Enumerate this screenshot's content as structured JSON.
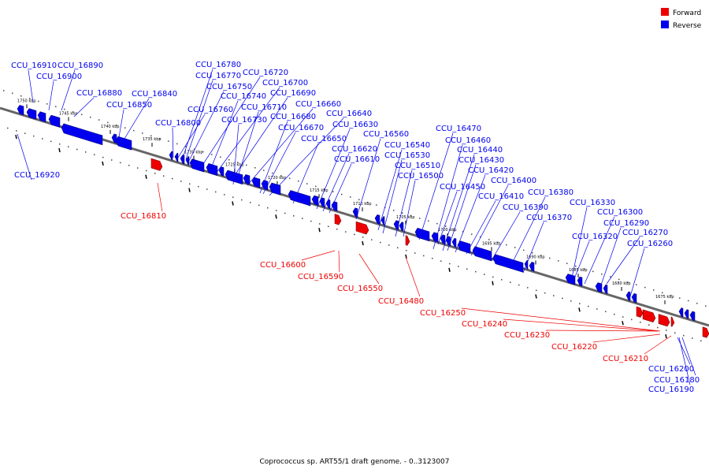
{
  "legend": [
    {
      "label": "Forward",
      "color": "#ee0000"
    },
    {
      "label": "Reverse",
      "color": "#0000ee"
    }
  ],
  "caption": "Coprococcus sp. ART55/1 draft genome. - 0..3123007",
  "colors": {
    "forward": "#ee0000",
    "reverse": "#0000ee",
    "backbone": "#666666"
  },
  "scale_unit": "kbp",
  "scale_ticks": [
    "1750 kbp",
    "1745 kbp",
    "1740 kbp",
    "1735 kbp",
    "1730 kbp",
    "1725 kbp",
    "1720 kbp",
    "1715 kbp",
    "1710 kbp",
    "1705 kbp",
    "1700 kbp",
    "1695 kbp",
    "1690 kbp",
    "1685 kbp",
    "1680 kbp",
    "1675 kbp"
  ],
  "reverse_genes": [
    "CCU_16910",
    "CCU_16890",
    "CCU_16900",
    "CCU_16880",
    "CCU_16840",
    "CCU_16850",
    "CCU_16920",
    "CCU_16780",
    "CCU_16770",
    "CCU_16750",
    "CCU_16720",
    "CCU_16700",
    "CCU_16740",
    "CCU_16690",
    "CCU_16710",
    "CCU_16760",
    "CCU_16660",
    "CCU_16730",
    "CCU_16680",
    "CCU_16640",
    "CCU_16800",
    "CCU_16670",
    "CCU_16630",
    "CCU_16650",
    "CCU_16560",
    "CCU_16620",
    "CCU_16540",
    "CCU_16610",
    "CCU_16530",
    "CCU_16510",
    "CCU_16500",
    "CCU_16470",
    "CCU_16460",
    "CCU_16440",
    "CCU_16430",
    "CCU_16420",
    "CCU_16450",
    "CCU_16400",
    "CCU_16410",
    "CCU_16380",
    "CCU_16390",
    "CCU_16370",
    "CCU_16330",
    "CCU_16300",
    "CCU_16290",
    "CCU_16320",
    "CCU_16270",
    "CCU_16260",
    "CCU_16200",
    "CCU_16180",
    "CCU_16190"
  ],
  "forward_genes": [
    "CCU_16810",
    "CCU_16600",
    "CCU_16590",
    "CCU_16550",
    "CCU_16480",
    "CCU_16250",
    "CCU_16240",
    "CCU_16230",
    "CCU_16220",
    "CCU_16210"
  ]
}
